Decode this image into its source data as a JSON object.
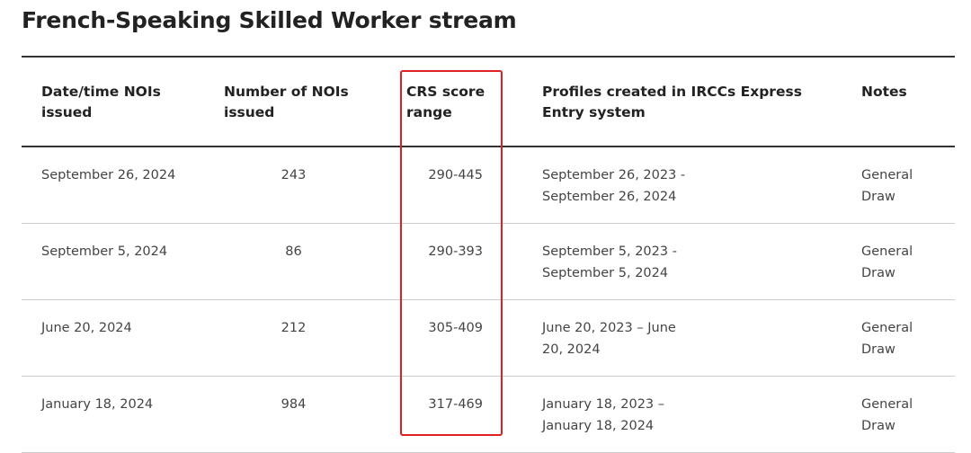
{
  "header": {
    "title": "French-Speaking Skilled Worker stream"
  },
  "table": {
    "headers": [
      "Date/time NOIs issued",
      "Number of NOIs issued",
      "CRS score range",
      "Profiles created in IRCCs Express Entry system",
      "Notes"
    ],
    "rows": [
      [
        "September 26, 2024",
        243,
        "290-445",
        "September 26, 2023 - September 26, 2024",
        "General Draw"
      ],
      [
        "September 5, 2024",
        86,
        "290-393",
        "September 5, 2023 - September 5, 2024",
        "General Draw"
      ],
      [
        "June 20, 2024",
        212,
        "305-409",
        "June 20, 2023 – June 20, 2024",
        "General Draw"
      ],
      [
        "January 18, 2024",
        984,
        "317-469",
        "January 18, 2023 – January 18, 2024",
        "General Draw"
      ]
    ]
  }
}
